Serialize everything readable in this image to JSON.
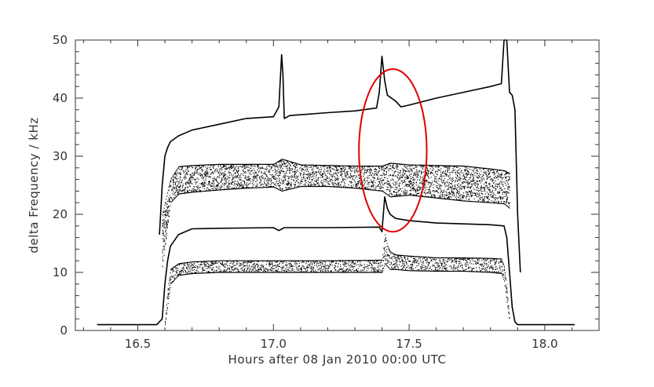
{
  "chart_data": {
    "type": "scatter",
    "title": "",
    "xlabel": "Hours after 08 Jan 2010 00:00 UTC",
    "ylabel": "delta Frequency / kHz",
    "xlim": [
      16.27,
      18.2
    ],
    "ylim": [
      0,
      50
    ],
    "x_ticks": [
      16.5,
      17.0,
      17.5,
      18.0
    ],
    "x_tick_labels": [
      "16.5",
      "17.0",
      "17.5",
      "18.0"
    ],
    "y_ticks": [
      0,
      10,
      20,
      30,
      40,
      50
    ],
    "y_tick_labels": [
      "0",
      "10",
      "20",
      "30",
      "40",
      "50"
    ],
    "grid": false,
    "series": [
      {
        "style": "line",
        "points": [
          [
            16.35,
            1.0
          ],
          [
            16.57,
            1.0
          ],
          [
            16.59,
            2.0
          ],
          [
            16.6,
            8.0
          ],
          [
            16.61,
            12.0
          ],
          [
            16.62,
            14.5
          ],
          [
            16.65,
            16.5
          ],
          [
            16.7,
            17.5
          ],
          [
            16.8,
            17.6
          ],
          [
            17.0,
            17.7
          ],
          [
            17.02,
            17.2
          ],
          [
            17.04,
            17.7
          ],
          [
            17.2,
            17.7
          ],
          [
            17.39,
            17.8
          ],
          [
            17.4,
            17.0
          ],
          [
            17.41,
            23.0
          ],
          [
            17.42,
            21.0
          ],
          [
            17.43,
            20.0
          ],
          [
            17.45,
            19.3
          ],
          [
            17.5,
            18.9
          ],
          [
            17.6,
            18.5
          ],
          [
            17.8,
            18.2
          ],
          [
            17.85,
            18.0
          ],
          [
            17.86,
            16.0
          ],
          [
            17.87,
            10.0
          ],
          [
            17.88,
            4.0
          ],
          [
            17.89,
            1.5
          ],
          [
            17.9,
            1.0
          ],
          [
            18.11,
            1.0
          ]
        ]
      },
      {
        "style": "line",
        "points": [
          [
            16.58,
            16.5
          ],
          [
            16.59,
            25.0
          ],
          [
            16.6,
            30.0
          ],
          [
            16.61,
            31.5
          ],
          [
            16.62,
            32.5
          ],
          [
            16.65,
            33.5
          ],
          [
            16.7,
            34.5
          ],
          [
            16.8,
            35.5
          ],
          [
            16.9,
            36.5
          ],
          [
            17.0,
            36.8
          ],
          [
            17.02,
            38.5
          ],
          [
            17.03,
            47.5
          ],
          [
            17.035,
            44.0
          ],
          [
            17.04,
            36.5
          ],
          [
            17.06,
            37.0
          ],
          [
            17.2,
            37.5
          ],
          [
            17.3,
            37.8
          ],
          [
            17.38,
            38.3
          ],
          [
            17.39,
            41.0
          ],
          [
            17.4,
            47.2
          ],
          [
            17.41,
            43.0
          ],
          [
            17.42,
            40.5
          ],
          [
            17.45,
            39.5
          ],
          [
            17.47,
            38.5
          ],
          [
            17.5,
            38.8
          ],
          [
            17.6,
            40.0
          ],
          [
            17.7,
            41.0
          ],
          [
            17.8,
            42.0
          ],
          [
            17.84,
            42.5
          ],
          [
            17.85,
            50.0
          ],
          [
            17.86,
            50.0
          ],
          [
            17.87,
            41.0
          ],
          [
            17.88,
            40.5
          ],
          [
            17.89,
            38.0
          ],
          [
            17.9,
            20.0
          ],
          [
            17.91,
            10.0
          ]
        ]
      },
      {
        "style": "band",
        "x": [
          16.59,
          16.62,
          16.65,
          16.7,
          16.8,
          16.9,
          17.0,
          17.03,
          17.1,
          17.2,
          17.3,
          17.4,
          17.43,
          17.5,
          17.6,
          17.7,
          17.8,
          17.85,
          17.87
        ],
        "upper": [
          20.0,
          26.0,
          28.2,
          28.4,
          28.6,
          28.6,
          28.6,
          29.5,
          28.5,
          28.4,
          28.3,
          28.3,
          28.8,
          28.5,
          28.4,
          28.3,
          27.8,
          27.5,
          27.0
        ],
        "lower": [
          11.0,
          22.0,
          23.5,
          23.8,
          24.2,
          24.5,
          24.7,
          24.0,
          24.8,
          24.8,
          24.5,
          24.0,
          23.0,
          23.3,
          22.8,
          22.3,
          22.0,
          21.8,
          21.0
        ]
      },
      {
        "style": "band",
        "x": [
          16.6,
          16.61,
          16.62,
          16.65,
          16.7,
          16.8,
          16.9,
          17.0,
          17.2,
          17.4,
          17.41,
          17.42,
          17.43,
          17.45,
          17.5,
          17.6,
          17.7,
          17.8,
          17.84,
          17.85,
          17.86,
          17.87
        ],
        "upper": [
          1.5,
          7.0,
          10.5,
          11.5,
          11.8,
          12.0,
          12.0,
          12.0,
          12.0,
          12.1,
          16.5,
          14.5,
          13.5,
          13.0,
          12.8,
          12.5,
          12.5,
          12.4,
          12.3,
          11.0,
          7.0,
          2.0
        ],
        "lower": [
          1.0,
          4.5,
          8.0,
          9.5,
          9.8,
          10.0,
          10.0,
          10.0,
          10.0,
          10.0,
          11.5,
          11.0,
          10.5,
          10.5,
          10.3,
          10.2,
          10.2,
          10.0,
          9.8,
          8.5,
          5.0,
          1.5
        ]
      }
    ],
    "annotations": [
      {
        "shape": "ellipse",
        "color": "#e00000",
        "cx": 17.44,
        "cy": 31.0,
        "rx": 0.125,
        "ry": 14.0
      }
    ],
    "colors": {
      "data": "#000000",
      "axes": "#333333",
      "annotation": "#e00000"
    }
  }
}
